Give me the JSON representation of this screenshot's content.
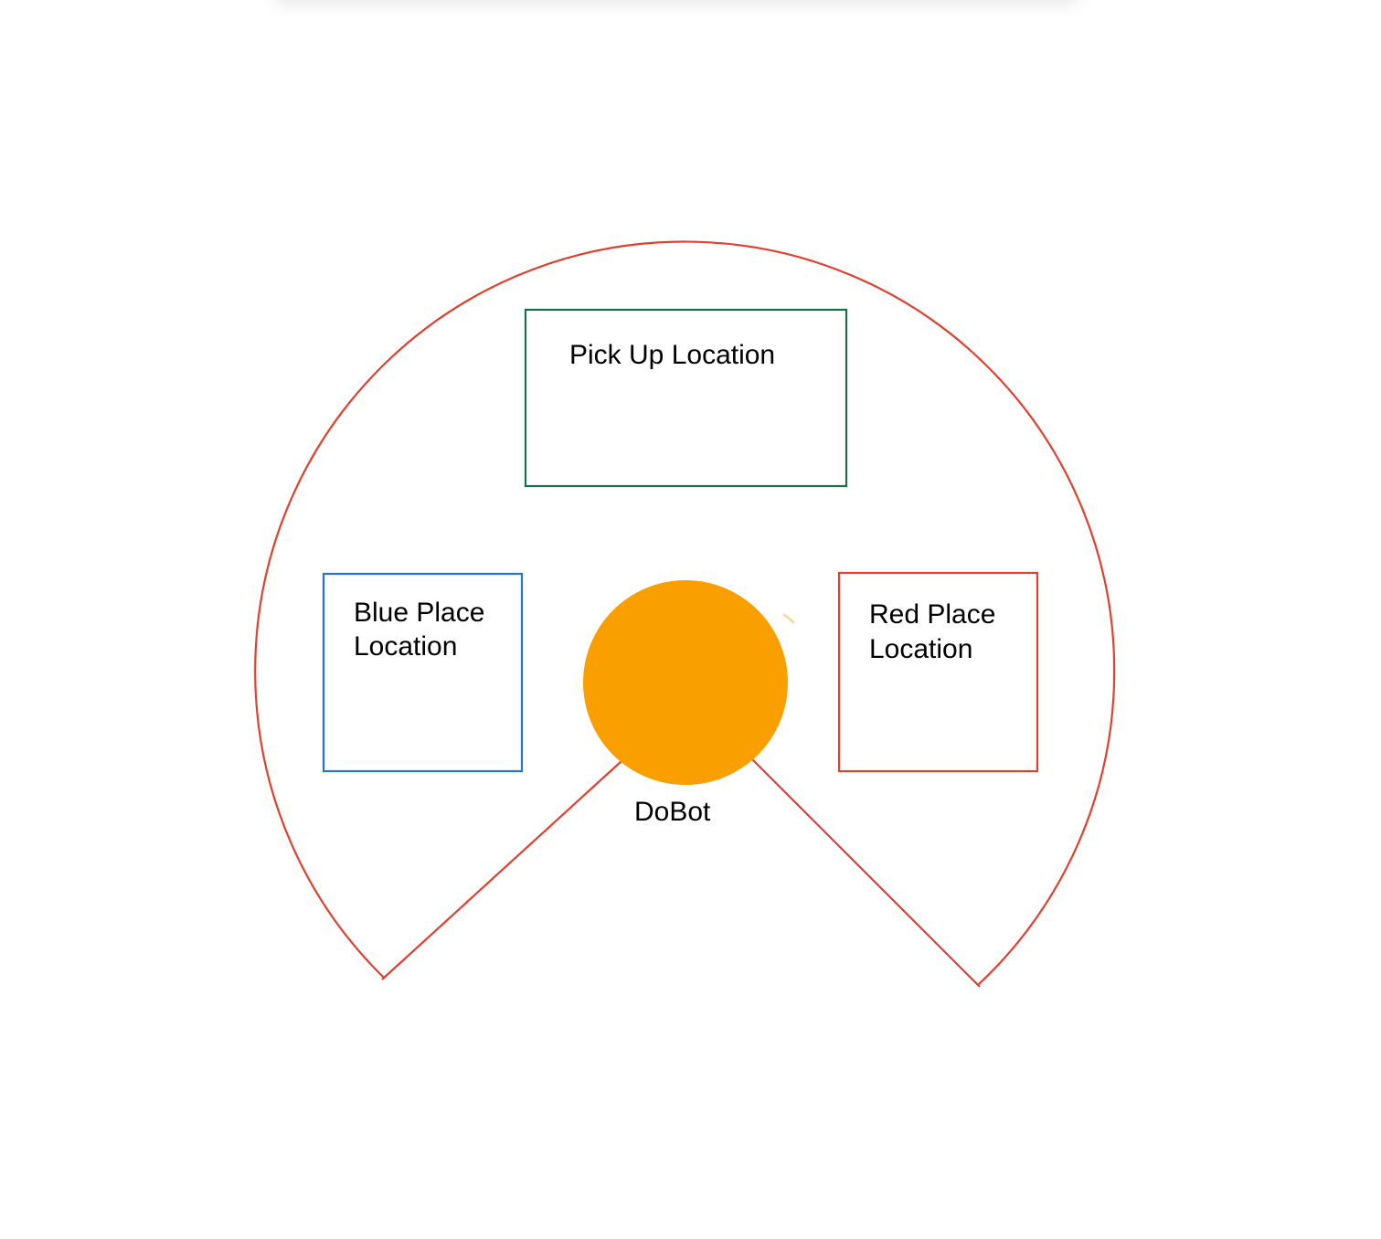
{
  "diagram": {
    "nodes": {
      "pickup": {
        "label": "Pick Up Location",
        "color": "#1b6e4b"
      },
      "blue_place": {
        "label_line1": "Blue Place",
        "label_line2": "Location",
        "color": "#1f74e0"
      },
      "red_place": {
        "label_line1": "Red Place",
        "label_line2": "Location",
        "color": "#e0402f"
      },
      "dobot": {
        "label": "DoBot",
        "color": "#f9a000"
      }
    },
    "workspace_boundary": {
      "color": "#e0402f"
    },
    "accent_mark": {
      "color": "#fbd9a0"
    }
  }
}
